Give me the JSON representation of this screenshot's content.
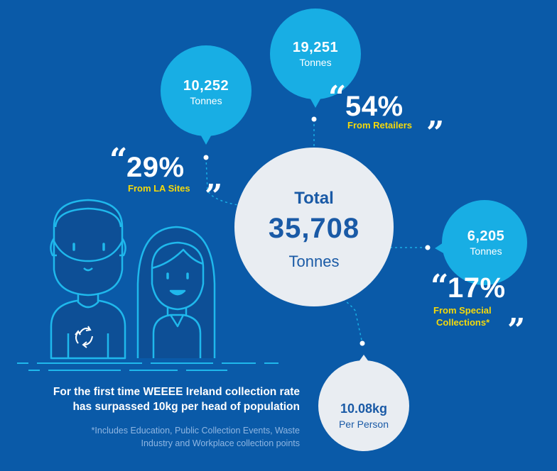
{
  "colors": {
    "background": "#0a5aa8",
    "bubble": "#18aee4",
    "total_circle": "#e9edf2",
    "text_dark_blue": "#1a5aa6",
    "highlight_yellow": "#f5d90a",
    "line_art": "#1fb8ec"
  },
  "total": {
    "label": "Total",
    "value": "35,708",
    "unit": "Tonnes"
  },
  "retailers": {
    "bubble_value": "19,251",
    "bubble_unit": "Tonnes",
    "percent": "54%",
    "source": "From Retailers"
  },
  "la_sites": {
    "bubble_value": "10,252",
    "bubble_unit": "Tonnes",
    "percent": "29%",
    "source": "From LA Sites"
  },
  "special": {
    "bubble_value": "6,205",
    "bubble_unit": "Tonnes",
    "percent": "17%",
    "source_line1": "From Special",
    "source_line2": "Collections*"
  },
  "per_person": {
    "value": "10.08kg",
    "unit": "Per Person"
  },
  "headline": {
    "line1": "For the first time WEEEE Ireland collection rate",
    "line2": "has surpassed 10kg per head of population"
  },
  "footnote": {
    "line1": "*Includes Education, Public Collection Events, Waste",
    "line2": "Industry and Workplace collection points"
  },
  "quotes": {
    "open": "“",
    "close": "”"
  },
  "icons": {
    "recycle": "recycle-icon",
    "man": "man-illustration",
    "woman": "woman-illustration"
  }
}
